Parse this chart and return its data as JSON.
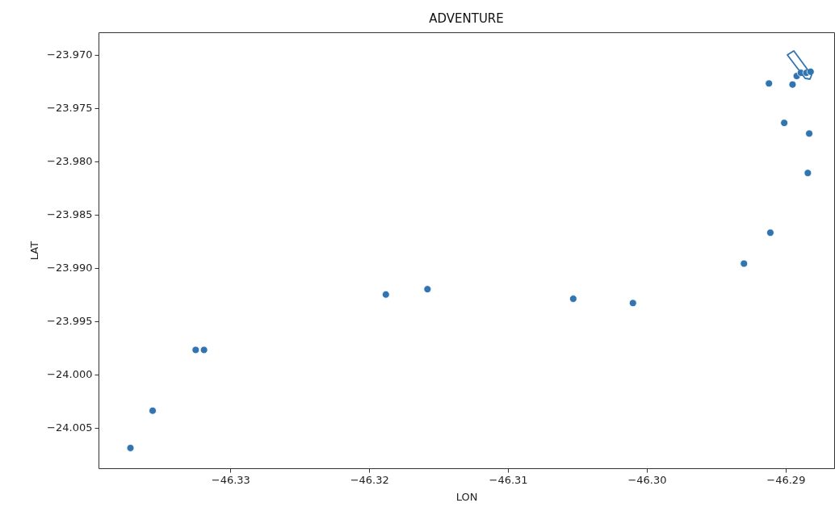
{
  "chart_data": {
    "type": "scatter",
    "title": "ADVENTURE",
    "xlabel": "LON",
    "ylabel": "LAT",
    "marker": "circle",
    "x": [
      -46.3372,
      -46.3356,
      -46.3325,
      -46.3319,
      -46.3188,
      -46.3158,
      -46.3053,
      -46.301,
      -46.293,
      -46.2911,
      -46.2912,
      -46.2901,
      -46.2883,
      -46.2884,
      -46.2895,
      -46.2892,
      -46.2889,
      -46.2885,
      -46.2882
    ],
    "series": [
      {
        "color": "#3274b0",
        "values": [
          -24.0069,
          -24.0034,
          -23.9977,
          -23.9977,
          -23.9925,
          -23.992,
          -23.9929,
          -23.9933,
          -23.9896,
          -23.9867,
          -23.9727,
          -23.9764,
          -23.9774,
          -23.9811,
          -23.9728,
          -23.972,
          -23.9717,
          -23.9717,
          -23.9716
        ]
      }
    ],
    "xlim": [
      -46.3395,
      -46.2865
    ],
    "ylim": [
      -24.0088,
      -23.9679
    ],
    "xticks": [
      {
        "value": -46.33,
        "label": "−46.33"
      },
      {
        "value": -46.32,
        "label": "−46.32"
      },
      {
        "value": -46.31,
        "label": "−46.31"
      },
      {
        "value": -46.3,
        "label": "−46.30"
      },
      {
        "value": -46.29,
        "label": "−46.29"
      }
    ],
    "yticks": [
      {
        "value": -23.97,
        "label": "−23.970"
      },
      {
        "value": -23.975,
        "label": "−23.975"
      },
      {
        "value": -23.98,
        "label": "−23.980"
      },
      {
        "value": -23.985,
        "label": "−23.985"
      },
      {
        "value": -23.99,
        "label": "−23.990"
      },
      {
        "value": -23.995,
        "label": "−23.995"
      },
      {
        "value": -24.0,
        "label": "−24.000"
      },
      {
        "value": -24.005,
        "label": "−24.005"
      }
    ],
    "grid": false
  }
}
